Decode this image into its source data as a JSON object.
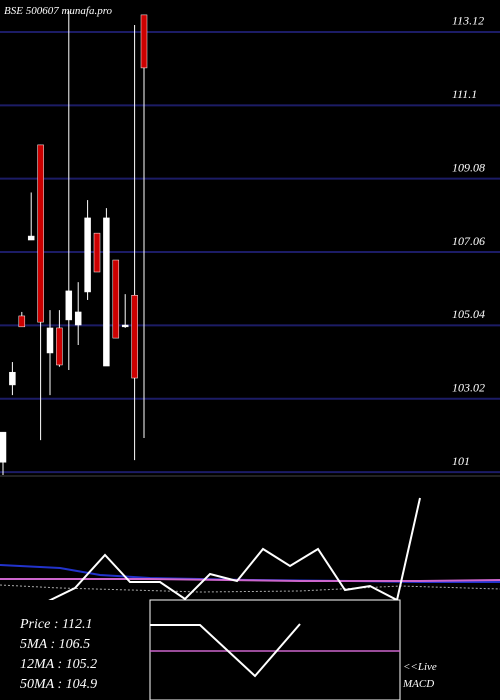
{
  "chart_data": {
    "type": "candlestick",
    "title": "BSE 500607 munafa.pro",
    "open": [
      101.27,
      103.4,
      105.3,
      107.39,
      110.01,
      104.28,
      104.97,
      105.19,
      105.05,
      105.96,
      107.58,
      103.92,
      106.84,
      105.0,
      105.87,
      113.59
    ],
    "high": [
      102.1,
      104.03,
      105.41,
      108.7,
      110.01,
      105.46,
      105.46,
      113.7,
      106.23,
      108.49,
      107.58,
      108.27,
      106.84,
      105.9,
      113.31,
      113.59
    ],
    "low": [
      100.92,
      103.12,
      105.0,
      107.39,
      101.88,
      103.12,
      103.9,
      103.81,
      104.5,
      105.74,
      106.51,
      103.92,
      104.69,
      104.97,
      101.33,
      101.94
    ],
    "close": [
      102.1,
      103.75,
      105.0,
      107.5,
      105.13,
      104.97,
      103.95,
      105.99,
      105.41,
      108.0,
      106.51,
      108.0,
      104.69,
      105.05,
      103.59,
      112.13
    ],
    "up_color": "#ffffff",
    "down_color": "#cc0000",
    "ylim": [
      100.92,
      114.0
    ],
    "yticks": [
      113.12,
      111.1,
      109.08,
      107.06,
      105.04,
      103.02,
      101
    ],
    "grid": true,
    "grid_color": "#1c1c66"
  },
  "info": {
    "lines": [
      "Price : 112.1",
      "5MA : 106.5",
      "12MA : 105.2",
      "50MA : 104.9"
    ],
    "live": "<<Live",
    "macd": "MACD"
  }
}
